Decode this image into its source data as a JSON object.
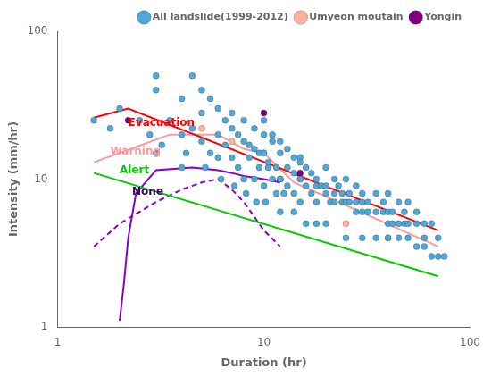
{
  "chart_data": {
    "type": "scatter",
    "xlabel": "Duration (hr)",
    "ylabel": "Intensity (mm/hr)",
    "log": true,
    "xlim": [
      1,
      100
    ],
    "ylim": [
      1,
      100
    ],
    "xticks": [
      1,
      10,
      100
    ],
    "yticks": [
      1,
      10,
      100
    ],
    "grid": false,
    "legend": "upper right",
    "series": [
      {
        "name": "All landslide(1999-2012)",
        "type": "scatter",
        "marker": "circle",
        "color": "#4fa8d8",
        "x": [
          1.5,
          1.8,
          2.0,
          2.5,
          3.0,
          3.5,
          3.0,
          4.0,
          4.0,
          4.5,
          4.5,
          5.0,
          5.0,
          5.0,
          5.5,
          5.5,
          6.0,
          6.0,
          6.0,
          6.5,
          6.5,
          7.0,
          7.0,
          7.0,
          7.5,
          7.5,
          8.0,
          8.0,
          8.0,
          8.5,
          8.5,
          9.0,
          9.0,
          9.0,
          9.5,
          9.5,
          10.0,
          10.0,
          10.0,
          10.0,
          10.5,
          10.5,
          11.0,
          11.0,
          11.0,
          11.5,
          11.5,
          12.0,
          12.0,
          12.0,
          12.5,
          13.0,
          13.0,
          13.0,
          14.0,
          14.0,
          14.0,
          15.0,
          15.0,
          15.0,
          15.0,
          16.0,
          16.0,
          17.0,
          17.0,
          18.0,
          18.0,
          18.0,
          19.0,
          20.0,
          20.0,
          20.0,
          21.0,
          22.0,
          22.0,
          22.0,
          23.0,
          24.0,
          24.0,
          25.0,
          25.0,
          26.0,
          26.0,
          28.0,
          28.0,
          28.0,
          30.0,
          30.0,
          30.0,
          32.0,
          32.0,
          35.0,
          35.0,
          38.0,
          38.0,
          40.0,
          40.0,
          40.0,
          42.0,
          42.0,
          45.0,
          45.0,
          48.0,
          48.0,
          50.0,
          50.0,
          55.0,
          55.0,
          60.0,
          60.0,
          65.0,
          70.0,
          3.0,
          4.0,
          2.8,
          3.2,
          4.2,
          5.2,
          6.2,
          7.2,
          8.2,
          9.2,
          10.2,
          12.0,
          14.0,
          16.0,
          18.0,
          20.0,
          25.0,
          30.0,
          35.0,
          40.0,
          45.0,
          50.0,
          55.0,
          60.0,
          65.0,
          70.0,
          75.0
        ],
        "values": [
          25,
          22,
          30,
          25,
          40,
          25,
          50,
          20,
          35,
          22,
          50,
          18,
          28,
          40,
          15,
          35,
          20,
          14,
          30,
          17,
          25,
          22,
          14,
          28,
          12,
          20,
          18,
          10,
          25,
          14,
          17,
          16,
          10,
          22,
          12,
          15,
          20,
          15,
          9,
          25,
          12,
          13,
          18,
          10,
          20,
          8,
          12,
          15,
          10,
          18,
          8,
          12,
          9,
          16,
          11,
          8,
          14,
          14,
          10,
          7,
          13,
          9,
          12,
          11,
          8,
          10,
          7,
          9,
          9,
          12,
          8,
          9,
          7,
          10,
          7,
          8,
          9,
          8,
          7,
          10,
          7,
          8,
          7,
          9,
          6,
          7,
          8,
          6,
          7,
          7,
          6,
          8,
          6,
          7,
          6,
          8,
          5,
          6,
          6,
          5,
          7,
          5,
          6,
          5,
          7,
          5,
          6,
          5,
          5,
          4,
          5,
          4,
          15,
          12,
          20,
          17,
          15,
          12,
          10,
          9,
          8,
          7,
          7,
          6,
          6,
          5,
          5,
          5,
          4,
          4,
          4,
          4,
          4,
          4,
          3.5,
          3.5,
          3,
          3,
          3
        ]
      },
      {
        "name": "Umyeon moutain",
        "type": "scatter",
        "marker": "circle",
        "color": "#ffb0a0",
        "x": [
          5.0,
          7.0,
          10.0,
          15.0,
          25.0,
          40.0
        ],
        "values": [
          22,
          18,
          15,
          10,
          5,
          4
        ]
      },
      {
        "name": "Yongin",
        "type": "scatter",
        "marker": "circle",
        "color": "#800080",
        "x": [
          2.2,
          10.0,
          12.0,
          15.0
        ],
        "values": [
          25,
          28,
          10,
          11
        ]
      },
      {
        "type": "line",
        "line_style": "solid",
        "color": "#ff0000",
        "x": [
          1.5,
          2.2,
          70.0
        ],
        "values": [
          26.0,
          30.0,
          4.5
        ]
      },
      {
        "type": "line",
        "line_style": "solid",
        "color": "#ff9999",
        "x": [
          1.5,
          3.5,
          6.0,
          8.0,
          10.0,
          14.0,
          70.0
        ],
        "values": [
          13.0,
          20.0,
          20.0,
          16.0,
          15.0,
          9.5,
          3.5
        ]
      },
      {
        "type": "line",
        "line_style": "solid",
        "color": "#00cc00",
        "x": [
          1.5,
          70.0
        ],
        "values": [
          11.0,
          2.2
        ]
      },
      {
        "type": "line",
        "line_style": "solid",
        "color": "#8800cc",
        "x": [
          2.0,
          2.1,
          2.2,
          2.4,
          3.0,
          4.5,
          6.0,
          7.0,
          8.0,
          10.0,
          12.0
        ],
        "values": [
          1.1,
          2.0,
          4.0,
          8.0,
          11.5,
          12.0,
          11.5,
          11.0,
          10.5,
          10.0,
          9.5
        ]
      },
      {
        "type": "line",
        "line_style": "dashed",
        "color": "#8800cc",
        "x": [
          1.5,
          2.0,
          3.0,
          4.0,
          5.0,
          6.0,
          7.0,
          8.0,
          10.0,
          12.0
        ],
        "values": [
          3.5,
          5.0,
          7.0,
          8.5,
          9.5,
          10.0,
          8.5,
          7.0,
          4.5,
          3.5
        ]
      }
    ],
    "annotations": [
      {
        "text": "Evacuation",
        "x": 2.2,
        "y": 22.0,
        "color": "#ff0000"
      },
      {
        "text": "Warning",
        "x": 1.8,
        "y": 14.0,
        "color": "#ff9999"
      },
      {
        "text": "Alert",
        "x": 2.0,
        "y": 10.5,
        "color": "#00cc00"
      },
      {
        "text": "None",
        "x": 2.3,
        "y": 7.5,
        "color": "#330066"
      }
    ]
  }
}
